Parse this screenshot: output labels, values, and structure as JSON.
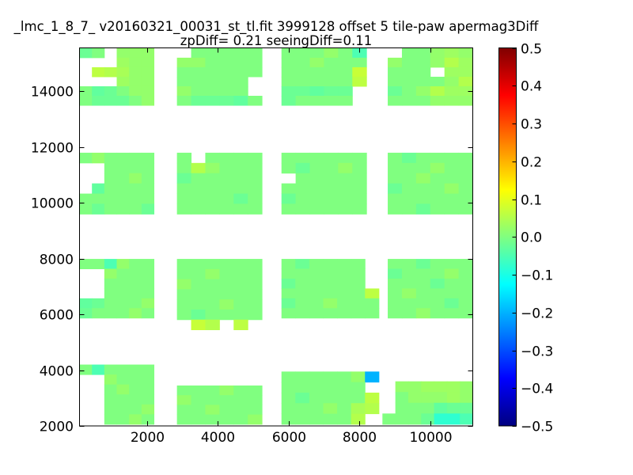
{
  "figure": {
    "background": "#ffffff",
    "accent_base_green": "#80ff80"
  },
  "chart_data": {
    "type": "heatmap",
    "title": "_lmc_1_8_7_ v20160321_00031_st_tl.fit 3999128 offset 5 tile-paw apermag3Diff",
    "subtitle": "zpDiff= 0.21 seeingDiff=0.11",
    "xlabel": "",
    "ylabel": "",
    "xlim": [
      100,
      11200
    ],
    "ylim": [
      2000,
      15560
    ],
    "x_ticks": [
      2000,
      4000,
      6000,
      8000,
      10000
    ],
    "y_ticks": [
      2000,
      4000,
      6000,
      8000,
      10000,
      12000,
      14000
    ],
    "grid": false,
    "legend": null,
    "colorbar": {
      "min": -0.5,
      "max": 0.5,
      "ticks": [
        0.5,
        0.4,
        0.3,
        0.2,
        0.1,
        0.0,
        -0.1,
        -0.2,
        -0.3,
        -0.4,
        -0.5
      ],
      "colormap": "jet",
      "position": "right"
    },
    "tiles": [
      {
        "id": "row4-col1",
        "x0": 100,
        "x1": 2200,
        "y0": 13500,
        "y1": 15550,
        "values": [
          [
            -0.02,
            0,
            null,
            0.02,
            0.02,
            0.02
          ],
          [
            null,
            null,
            null,
            0.03,
            0.02,
            0.02
          ],
          [
            null,
            0.06,
            0.05,
            0.04,
            0.02,
            0.02
          ],
          [
            null,
            null,
            null,
            0.03,
            0.02,
            0.02
          ],
          [
            0,
            -0.03,
            -0.02,
            0,
            0.02,
            0.02
          ],
          [
            0,
            -0.02,
            -0.02,
            -0.02,
            0,
            0.02
          ]
        ]
      },
      {
        "id": "row4-col2",
        "x0": 2850,
        "x1": 5250,
        "y0": 13500,
        "y1": 15550,
        "values": [
          [
            null,
            0,
            0,
            0,
            0,
            0
          ],
          [
            0.02,
            0.02,
            0,
            0,
            0,
            0
          ],
          [
            0,
            0,
            0,
            0,
            0,
            0
          ],
          [
            0,
            0,
            0,
            0,
            0,
            null
          ],
          [
            0.02,
            0,
            0,
            0,
            0,
            null
          ],
          [
            0,
            -0.02,
            -0.02,
            -0.02,
            -0.03,
            0
          ]
        ]
      },
      {
        "id": "row4-col3",
        "x0": 5800,
        "x1": 8200,
        "y0": 13500,
        "y1": 15550,
        "values": [
          [
            0,
            0,
            0,
            0.02,
            0,
            -0.05
          ],
          [
            0,
            0,
            0.02,
            0,
            0,
            0
          ],
          [
            0,
            0,
            0,
            0,
            0,
            0.07
          ],
          [
            0,
            0,
            0,
            0,
            0,
            0.06
          ],
          [
            -0.02,
            -0.02,
            -0.03,
            -0.02,
            -0.02,
            null
          ],
          [
            -0.02,
            0,
            0,
            0,
            0,
            null
          ]
        ]
      },
      {
        "id": "row4-col4",
        "x0": 8800,
        "x1": 11200,
        "y0": 13500,
        "y1": 15550,
        "values": [
          [
            null,
            0,
            0,
            0.02,
            0.03,
            0.02
          ],
          [
            0.02,
            0,
            0,
            0.02,
            0.05,
            0.03
          ],
          [
            0,
            0,
            0,
            null,
            0.03,
            0.03
          ],
          [
            0,
            0,
            0,
            0,
            0.02,
            0.05
          ],
          [
            -0.02,
            0,
            0.02,
            0.05,
            0.03,
            0.03
          ],
          [
            0,
            0,
            0,
            0.02,
            0.02,
            0.02
          ]
        ]
      },
      {
        "id": "row3-col1",
        "x0": 100,
        "x1": 2200,
        "y0": 9600,
        "y1": 11800,
        "values": [
          [
            0,
            0.02,
            0,
            0,
            0,
            0
          ],
          [
            null,
            null,
            0,
            0,
            0,
            0
          ],
          [
            null,
            null,
            0,
            0,
            0.02,
            0
          ],
          [
            null,
            -0.03,
            0,
            0,
            0,
            0
          ],
          [
            0,
            0,
            0,
            0,
            0,
            0
          ],
          [
            0,
            -0.02,
            0,
            0,
            0,
            -0.02
          ]
        ]
      },
      {
        "id": "row3-col2",
        "x0": 2850,
        "x1": 5250,
        "y0": 9600,
        "y1": 11800,
        "values": [
          [
            0,
            null,
            0,
            0,
            0,
            0
          ],
          [
            0,
            0.05,
            0.02,
            0,
            0,
            0
          ],
          [
            -0.02,
            0,
            0,
            0,
            0,
            0
          ],
          [
            0,
            0,
            0,
            0,
            0,
            0
          ],
          [
            0,
            0,
            0,
            0,
            -0.02,
            0
          ],
          [
            0,
            0,
            0,
            0,
            0,
            0
          ]
        ]
      },
      {
        "id": "row3-col3",
        "x0": 5800,
        "x1": 8200,
        "y0": 9600,
        "y1": 11800,
        "values": [
          [
            0,
            0,
            0,
            0,
            0,
            0
          ],
          [
            0,
            -0.02,
            0,
            0,
            0.02,
            0
          ],
          [
            null,
            0,
            0,
            0,
            0,
            0
          ],
          [
            0,
            0,
            0,
            0,
            0,
            0
          ],
          [
            -0.02,
            0,
            0,
            0,
            0,
            0
          ],
          [
            0,
            0,
            0,
            0,
            0,
            0
          ]
        ]
      },
      {
        "id": "row3-col4",
        "x0": 8800,
        "x1": 11200,
        "y0": 9600,
        "y1": 11800,
        "values": [
          [
            0,
            -0.02,
            0,
            0,
            0,
            0
          ],
          [
            0,
            0,
            0,
            0.02,
            0,
            0
          ],
          [
            0,
            0,
            0.02,
            0,
            0,
            0
          ],
          [
            -0.02,
            0,
            0,
            0,
            0.02,
            0
          ],
          [
            0,
            0,
            0,
            0,
            0,
            0
          ],
          [
            0,
            0,
            -0.02,
            0,
            0,
            0
          ]
        ]
      },
      {
        "id": "row2-col1",
        "x0": 100,
        "x1": 2200,
        "y0": 5870,
        "y1": 7990,
        "values": [
          [
            0,
            0,
            -0.05,
            0.02,
            0,
            0
          ],
          [
            null,
            null,
            0.02,
            0,
            0,
            0
          ],
          [
            null,
            null,
            0,
            0,
            0,
            0
          ],
          [
            null,
            null,
            0,
            0,
            0,
            0
          ],
          [
            -0.03,
            -0.02,
            0,
            0,
            0,
            0.02
          ],
          [
            -0.02,
            0,
            0,
            0,
            0.02,
            0
          ]
        ]
      },
      {
        "id": "row2-col2",
        "x0": 2850,
        "x1": 5250,
        "y0": 5450,
        "y1": 7990,
        "values": [
          [
            0,
            0,
            0,
            0,
            0,
            0
          ],
          [
            0,
            0,
            0.02,
            0,
            0,
            0
          ],
          [
            0.02,
            0,
            0,
            0,
            0,
            0
          ],
          [
            0,
            0,
            0,
            0,
            0,
            0
          ],
          [
            0,
            0,
            0,
            0.02,
            0,
            0
          ],
          [
            0,
            -0.02,
            0,
            0,
            0,
            0
          ],
          [
            null,
            0.07,
            0.05,
            null,
            0.06,
            null
          ]
        ]
      },
      {
        "id": "row2-col3",
        "x0": 5800,
        "x1": 8550,
        "y0": 5870,
        "y1": 7990,
        "values": [
          [
            0,
            -0.02,
            0,
            0,
            0,
            0,
            null
          ],
          [
            0,
            0,
            0,
            0,
            0,
            0,
            null
          ],
          [
            -0.02,
            0,
            0,
            0,
            0,
            0,
            null
          ],
          [
            0,
            0,
            0,
            0,
            0,
            0,
            0.06
          ],
          [
            -0.02,
            0,
            0,
            0.02,
            0,
            0,
            0
          ],
          [
            0,
            0,
            0,
            0,
            0,
            0,
            0
          ]
        ]
      },
      {
        "id": "row2-col4",
        "x0": 8800,
        "x1": 11200,
        "y0": 5870,
        "y1": 7990,
        "values": [
          [
            0,
            0,
            -0.02,
            0,
            0,
            0
          ],
          [
            -0.02,
            0,
            0,
            0,
            0.02,
            0
          ],
          [
            0,
            0,
            0,
            -0.02,
            0,
            0
          ],
          [
            0,
            0.02,
            0,
            0,
            0,
            0
          ],
          [
            0,
            0,
            0,
            0,
            -0.02,
            0
          ],
          [
            0,
            0,
            0.02,
            0,
            0,
            0
          ]
        ]
      },
      {
        "id": "row1-col1",
        "x0": 100,
        "x1": 2200,
        "y0": 2060,
        "y1": 4200,
        "values": [
          [
            0,
            -0.05,
            0,
            0,
            0,
            0
          ],
          [
            null,
            null,
            0.02,
            0,
            0,
            0
          ],
          [
            null,
            null,
            0,
            0.02,
            0,
            0
          ],
          [
            null,
            null,
            0,
            0,
            0,
            0
          ],
          [
            null,
            null,
            0,
            0,
            0,
            0.02
          ],
          [
            null,
            null,
            0,
            0,
            0.02,
            0
          ]
        ]
      },
      {
        "id": "row1-col2",
        "x0": 2850,
        "x1": 5250,
        "y0": 2060,
        "y1": 3450,
        "values": [
          [
            0,
            0,
            0,
            0.02,
            0,
            0
          ],
          [
            0.02,
            0,
            0,
            0,
            0,
            0
          ],
          [
            0,
            0,
            0.02,
            0,
            0,
            0
          ],
          [
            0,
            0,
            0,
            0,
            0,
            0.02
          ]
        ]
      },
      {
        "id": "row1-col3",
        "x0": 5800,
        "x1": 8550,
        "y0": 2060,
        "y1": 3950,
        "values": [
          [
            0,
            0,
            0,
            0,
            0,
            0.02,
            -0.2
          ],
          [
            0,
            0,
            0,
            0,
            0,
            0,
            null
          ],
          [
            0,
            -0.02,
            0,
            0,
            0,
            0,
            0.06
          ],
          [
            0,
            0,
            0,
            0.02,
            0,
            0.04,
            0.05
          ],
          [
            0,
            0,
            0,
            0,
            0,
            0.05,
            null
          ]
        ]
      },
      {
        "id": "row1-col4",
        "x0": 8650,
        "x1": 11200,
        "y0": 2060,
        "y1": 3600,
        "values": [
          [
            null,
            0.02,
            0.02,
            0.03,
            0.03,
            0.03,
            0.02
          ],
          [
            null,
            0,
            0.02,
            0.02,
            0.02,
            0.03,
            0.02
          ],
          [
            null,
            0,
            0,
            0,
            -0.03,
            -0.02,
            -0.02
          ],
          [
            0,
            0,
            0,
            -0.02,
            -0.08,
            -0.08,
            -0.05
          ]
        ]
      }
    ]
  }
}
